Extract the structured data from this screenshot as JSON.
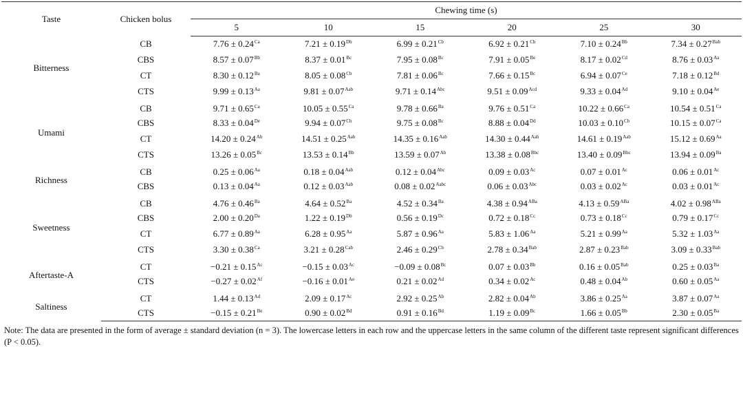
{
  "header": {
    "taste": "Taste",
    "bolus": "Chicken bolus",
    "chewing": "Chewing time (s)",
    "times": [
      "5",
      "10",
      "15",
      "20",
      "25",
      "30"
    ]
  },
  "table": {
    "groups": [
      {
        "taste": "Bitterness",
        "rows": [
          {
            "bolus": "CB",
            "cells": [
              [
                "7.76 ± 0.24",
                "Ca"
              ],
              [
                "7.21 ± 0.19",
                "Db"
              ],
              [
                "6.99 ± 0.21",
                "Cb"
              ],
              [
                "6.92 ± 0.21",
                "Cb"
              ],
              [
                "7.10 ± 0.24",
                "Bb"
              ],
              [
                "7.34 ± 0.27",
                "Bab"
              ]
            ]
          },
          {
            "bolus": "CBS",
            "cells": [
              [
                "8.57 ± 0.07",
                "Bb"
              ],
              [
                "8.37 ± 0.01",
                "Bc"
              ],
              [
                "7.95 ± 0.08",
                "Bc"
              ],
              [
                "7.91 ± 0.05",
                "Be"
              ],
              [
                "8.17 ± 0.02",
                "Cd"
              ],
              [
                "8.76 ± 0.03",
                "Aa"
              ]
            ]
          },
          {
            "bolus": "CT",
            "cells": [
              [
                "8.30 ± 0.12",
                "Ba"
              ],
              [
                "8.05 ± 0.08",
                "Cb"
              ],
              [
                "7.81 ± 0.06",
                "Bc"
              ],
              [
                "7.66 ± 0.15",
                "Bc"
              ],
              [
                "6.94 ± 0.07",
                "Ce"
              ],
              [
                "7.18 ± 0.12",
                "Bd"
              ]
            ]
          },
          {
            "bolus": "CTS",
            "cells": [
              [
                "9.99 ± 0.13",
                "Aa"
              ],
              [
                "9.81 ± 0.07",
                "Aab"
              ],
              [
                "9.71 ± 0.14",
                "Abc"
              ],
              [
                "9.51 ± 0.09",
                "Acd"
              ],
              [
                "9.33 ± 0.04",
                "Ad"
              ],
              [
                "9.10 ± 0.04",
                "Ae"
              ]
            ]
          }
        ]
      },
      {
        "taste": "Umami",
        "rows": [
          {
            "bolus": "CB",
            "cells": [
              [
                "9.71 ± 0.65",
                "Ca"
              ],
              [
                "10.05 ± 0.55",
                "Ca"
              ],
              [
                "9.78 ± 0.66",
                "Ba"
              ],
              [
                "9.76 ± 0.51",
                "Ca"
              ],
              [
                "10.22 ± 0.66",
                "Ca"
              ],
              [
                "10.54 ± 0.51",
                "Ca"
              ]
            ]
          },
          {
            "bolus": "CBS",
            "cells": [
              [
                "8.33 ± 0.04",
                "De"
              ],
              [
                "9.94 ± 0.07",
                "Cb"
              ],
              [
                "9.75 ± 0.08",
                "Bc"
              ],
              [
                "8.88 ± 0.04",
                "Dd"
              ],
              [
                "10.03 ± 0.10",
                "Cb"
              ],
              [
                "10.15 ± 0.07",
                "Ca"
              ]
            ]
          },
          {
            "bolus": "CT",
            "cells": [
              [
                "14.20 ± 0.24",
                "Ab"
              ],
              [
                "14.51 ± 0.25",
                "Aab"
              ],
              [
                "14.35 ± 0.16",
                "Aab"
              ],
              [
                "14.30 ± 0.44",
                "Aab"
              ],
              [
                "14.61 ± 0.19",
                "Aab"
              ],
              [
                "15.12 ± 0.69",
                "Aa"
              ]
            ]
          },
          {
            "bolus": "CTS",
            "cells": [
              [
                "13.26 ± 0.05",
                "Bc"
              ],
              [
                "13.53 ± 0.14",
                "Bb"
              ],
              [
                "13.59 ± 0.07",
                "Ab"
              ],
              [
                "13.38 ± 0.08",
                "Bbc"
              ],
              [
                "13.40 ± 0.09",
                "Bbc"
              ],
              [
                "13.94 ± 0.09",
                "Ba"
              ]
            ]
          }
        ]
      },
      {
        "taste": "Richness",
        "rows": [
          {
            "bolus": "CB",
            "cells": [
              [
                "0.25 ± 0.06",
                "Aa"
              ],
              [
                "0.18 ± 0.04",
                "Aab"
              ],
              [
                "0.12 ± 0.04",
                "Abc"
              ],
              [
                "0.09 ± 0.03",
                "Ac"
              ],
              [
                "0.07 ± 0.01",
                "Ac"
              ],
              [
                "0.06 ± 0.01",
                "Ac"
              ]
            ]
          },
          {
            "bolus": "CBS",
            "cells": [
              [
                "0.13 ± 0.04",
                "Aa"
              ],
              [
                "0.12 ± 0.03",
                "Aab"
              ],
              [
                "0.08 ± 0.02",
                "Aabc"
              ],
              [
                "0.06 ± 0.03",
                "Abc"
              ],
              [
                "0.03 ± 0.02",
                "Ac"
              ],
              [
                "0.03 ± 0.01",
                "Ac"
              ]
            ]
          }
        ]
      },
      {
        "taste": "Sweetness",
        "rows": [
          {
            "bolus": "CB",
            "cells": [
              [
                "4.76 ± 0.46",
                "Ba"
              ],
              [
                "4.64 ± 0.52",
                "Ba"
              ],
              [
                "4.52 ± 0.34",
                "Ba"
              ],
              [
                "4.38 ± 0.94",
                "ABa"
              ],
              [
                "4.13 ± 0.59",
                "ABa"
              ],
              [
                "4.02 ± 0.98",
                "ABa"
              ]
            ]
          },
          {
            "bolus": "CBS",
            "cells": [
              [
                "2.00 ± 0.20",
                "Da"
              ],
              [
                "1.22 ± 0.19",
                "Db"
              ],
              [
                "0.56 ± 0.19",
                "Dc"
              ],
              [
                "0.72 ± 0.18",
                "Cc"
              ],
              [
                "0.73 ± 0.18",
                "Cc"
              ],
              [
                "0.79 ± 0.17",
                "Cc"
              ]
            ]
          },
          {
            "bolus": "CT",
            "cells": [
              [
                "6.77 ± 0.89",
                "Aa"
              ],
              [
                "6.28 ± 0.95",
                "Aa"
              ],
              [
                "5.87 ± 0.96",
                "Aa"
              ],
              [
                "5.83 ± 1.06",
                "Aa"
              ],
              [
                "5.21 ± 0.99",
                "Aa"
              ],
              [
                "5.32 ± 1.03",
                "Aa"
              ]
            ]
          },
          {
            "bolus": "CTS",
            "cells": [
              [
                "3.30 ± 0.38",
                "Ca"
              ],
              [
                "3.21 ± 0.28",
                "Cab"
              ],
              [
                "2.46 ± 0.29",
                "Cb"
              ],
              [
                "2.78 ± 0.34",
                "Bab"
              ],
              [
                "2.87 ± 0.23",
                "Bab"
              ],
              [
                "3.09 ± 0.33",
                "Bab"
              ]
            ]
          }
        ]
      },
      {
        "taste": "Aftertaste-A",
        "rows": [
          {
            "bolus": "CT",
            "cells": [
              [
                "−0.21 ± 0.15",
                "Ac"
              ],
              [
                "−0.15 ± 0.03",
                "Ac"
              ],
              [
                "−0.09 ± 0.08",
                "Bc"
              ],
              [
                "0.07 ± 0.03",
                "Bb"
              ],
              [
                "0.16 ± 0.05",
                "Bab"
              ],
              [
                "0.25 ± 0.03",
                "Ba"
              ]
            ]
          },
          {
            "bolus": "CTS",
            "cells": [
              [
                "−0.27 ± 0.02",
                "Af"
              ],
              [
                "−0.16 ± 0.01",
                "Ae"
              ],
              [
                "0.21 ± 0.02",
                "Ad"
              ],
              [
                "0.34 ± 0.02",
                "Ac"
              ],
              [
                "0.48 ± 0.04",
                "Ab"
              ],
              [
                "0.60 ± 0.05",
                "Aa"
              ]
            ]
          }
        ]
      },
      {
        "taste": "Saltiness",
        "rows": [
          {
            "bolus": "CT",
            "cells": [
              [
                "1.44 ± 0.13",
                "Ad"
              ],
              [
                "2.09 ± 0.17",
                "Ac"
              ],
              [
                "2.92 ± 0.25",
                "Ab"
              ],
              [
                "2.82 ± 0.04",
                "Ab"
              ],
              [
                "3.86 ± 0.25",
                "Aa"
              ],
              [
                "3.87 ± 0.07",
                "Aa"
              ]
            ]
          },
          {
            "bolus": "CTS",
            "cells": [
              [
                "−0.15 ± 0.21",
                "Be"
              ],
              [
                "0.90 ± 0.02",
                "Bd"
              ],
              [
                "0.91 ± 0.16",
                "Bd"
              ],
              [
                "1.19 ± 0.09",
                "Bc"
              ],
              [
                "1.66 ± 0.05",
                "Bb"
              ],
              [
                "2.30 ± 0.05",
                "Ba"
              ]
            ]
          }
        ]
      }
    ]
  },
  "note": "Note: The data are presented in the form of average ± standard deviation (n = 3). The lowercase letters in each row and the uppercase letters in the same column of the different taste represent significant differences (P < 0.05)."
}
